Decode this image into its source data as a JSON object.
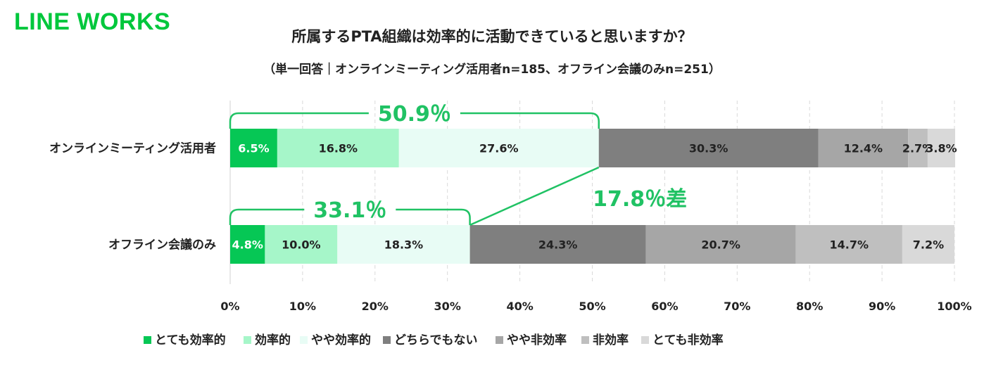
{
  "logo": "LINE WORKS",
  "colors": {
    "brand": "#00c73c",
    "annotation": "#20c264",
    "series": [
      "#06c755",
      "#a6f6c9",
      "#e8fcf5",
      "#7f7f7f",
      "#a6a6a6",
      "#bfbfbf",
      "#d9d9d9"
    ],
    "series_text": [
      "#ffffff",
      "#222222",
      "#222222",
      "#222222",
      "#222222",
      "#222222",
      "#222222"
    ]
  },
  "chart_data": {
    "type": "bar",
    "orientation": "horizontal-stacked-100",
    "title": "所属するPTA組織は効率的に活動できていると思いますか？",
    "subtitle": "（単一回答｜オンラインミーティング活用者n=185、オフライン会議のみn=251）",
    "categories": [
      "オンラインミーティング活用者",
      "オフライン会議のみ"
    ],
    "series": [
      {
        "name": "とても効率的",
        "values": [
          6.5,
          4.8
        ]
      },
      {
        "name": "効率的",
        "values": [
          16.8,
          10.0
        ]
      },
      {
        "name": "やや効率的",
        "values": [
          27.6,
          18.3
        ]
      },
      {
        "name": "どちらでもない",
        "values": [
          30.3,
          24.3
        ]
      },
      {
        "name": "やや非効率",
        "values": [
          12.4,
          20.7
        ]
      },
      {
        "name": "非効率",
        "values": [
          2.7,
          14.7
        ]
      },
      {
        "name": "とても非効率",
        "values": [
          3.8,
          7.2
        ]
      }
    ],
    "xlim": [
      0,
      100
    ],
    "xticks": [
      0,
      10,
      20,
      30,
      40,
      50,
      60,
      70,
      80,
      90,
      100
    ],
    "tick_suffix": "%",
    "grid": "vertical dashed",
    "legend_position": "bottom",
    "annotations": {
      "bracket_totals": [
        "50.9％",
        "33.1％"
      ],
      "difference": "17.8％差"
    }
  }
}
